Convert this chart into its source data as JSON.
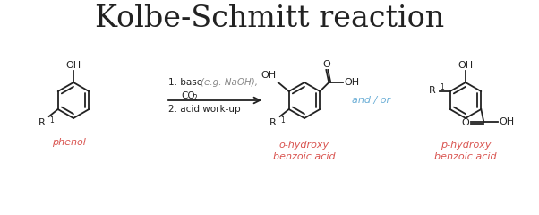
{
  "title": "Kolbe-Schmitt reaction",
  "title_fontsize": 24,
  "title_font": "serif",
  "bg_color": "#ffffff",
  "label_color_red": "#d9534f",
  "label_color_blue": "#6baed6",
  "label_color_black": "#222222",
  "phenol_label": "phenol",
  "ortho_label": "o-hydroxy\nbenzoic acid",
  "para_label": "p-hydroxy\nbenzoic acid",
  "andor_label": "and / or",
  "reaction_step1": "1. base ",
  "reaction_step1_italic": "(e.g. NaOH),",
  "reaction_step1b": "CO",
  "reaction_step1b_sub": "2",
  "reaction_step2": "2. acid work-up"
}
